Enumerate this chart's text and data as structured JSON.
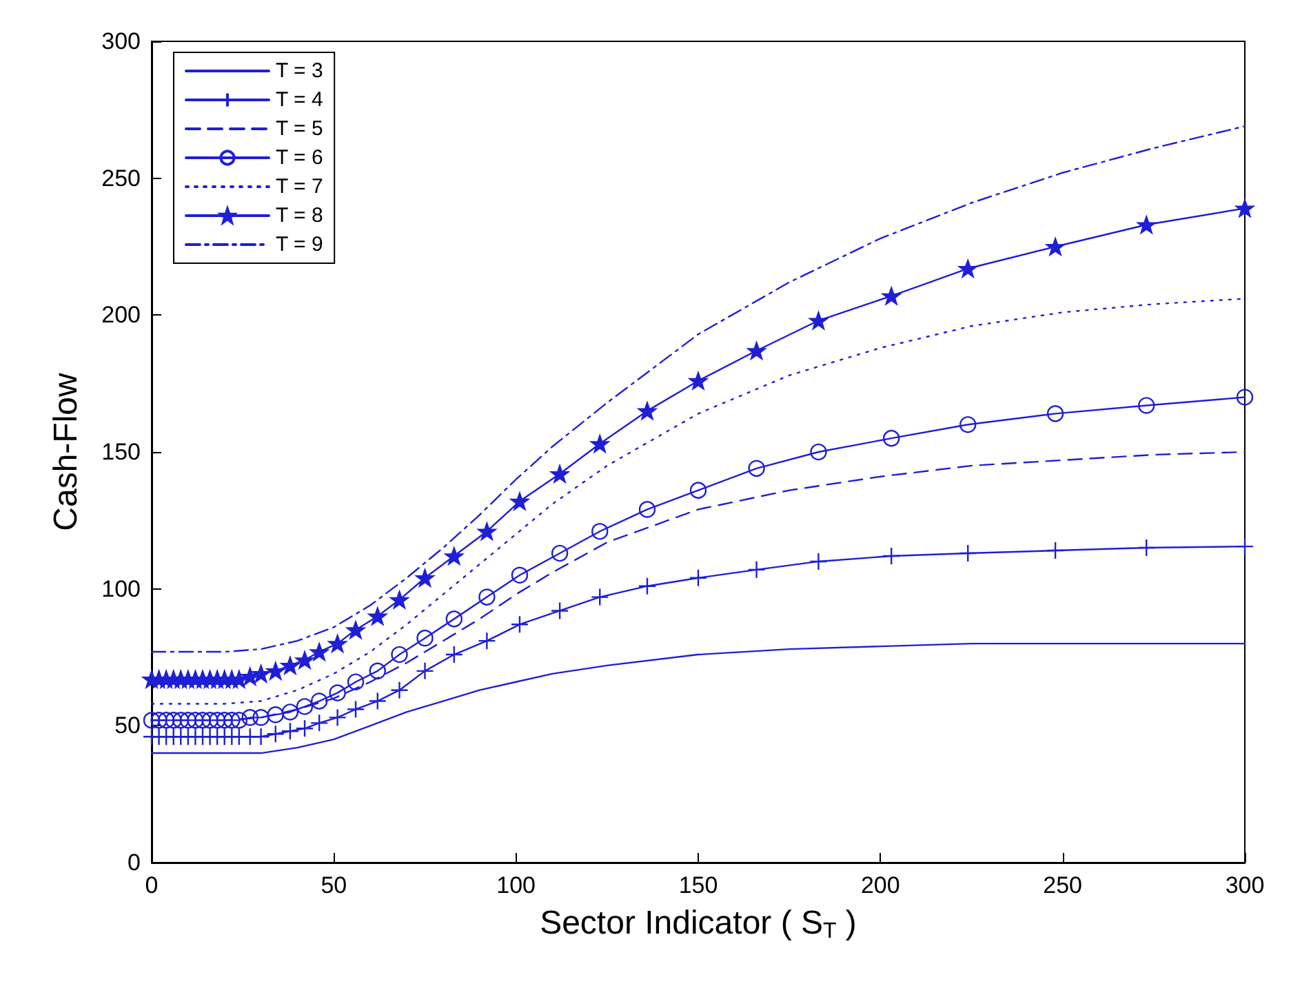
{
  "chart_data": {
    "type": "line",
    "xlabel": "Sector Indicator ( S$_{T}$ )",
    "ylabel": "Cash-Flow",
    "xlim": [
      0,
      300
    ],
    "xticks": [
      0,
      50,
      100,
      150,
      200,
      250,
      300
    ],
    "ylim": [
      0,
      300
    ],
    "yticks": [
      0,
      50,
      100,
      150,
      200,
      250,
      300
    ],
    "grid": false,
    "legend": "top left",
    "series": [
      {
        "name": "T = 3",
        "color": "#1f1fd6",
        "line_style": "solid",
        "marker": "none",
        "x": [
          0,
          10,
          20,
          30,
          40,
          50,
          60,
          70,
          80,
          90,
          100,
          110,
          125,
          150,
          175,
          200,
          225,
          250,
          275,
          300
        ],
        "values": [
          40,
          40,
          40,
          40,
          42,
          45,
          50,
          55,
          59,
          63,
          66,
          69,
          72,
          76,
          78,
          79,
          80,
          80,
          80,
          80
        ]
      },
      {
        "name": "T = 4",
        "color": "#1f1fd6",
        "line_style": "solid",
        "marker": "cross",
        "x": [
          0,
          2,
          4,
          6,
          8,
          10,
          12,
          14,
          16,
          18,
          20,
          22,
          24,
          27,
          30,
          34,
          38,
          42,
          46,
          51,
          56,
          62,
          68,
          75,
          83,
          92,
          101,
          112,
          123,
          136,
          150,
          166,
          183,
          203,
          224,
          248,
          273,
          300
        ],
        "values": [
          46,
          46,
          46,
          46,
          46,
          46,
          46,
          46,
          46,
          46,
          46,
          46,
          46,
          46,
          46,
          47,
          48,
          49,
          51,
          53,
          56,
          59,
          63,
          70,
          76,
          81,
          87,
          92,
          97,
          101,
          104,
          107,
          110,
          112,
          113,
          114,
          115,
          115.5
        ]
      },
      {
        "name": "T = 5",
        "color": "#1f1fd6",
        "line_style": "dashed",
        "marker": "none",
        "x": [
          0,
          10,
          20,
          30,
          40,
          50,
          60,
          70,
          80,
          90,
          100,
          110,
          125,
          150,
          175,
          200,
          225,
          250,
          275,
          300
        ],
        "values": [
          52,
          52,
          52,
          53,
          56,
          60,
          66,
          73,
          81,
          89,
          98,
          106,
          117,
          129,
          136,
          141,
          145,
          147,
          149,
          150
        ]
      },
      {
        "name": "T = 6",
        "color": "#1f1fd6",
        "line_style": "solid",
        "marker": "circle",
        "x": [
          0,
          2,
          4,
          6,
          8,
          10,
          12,
          14,
          16,
          18,
          20,
          22,
          24,
          27,
          30,
          34,
          38,
          42,
          46,
          51,
          56,
          62,
          68,
          75,
          83,
          92,
          101,
          112,
          123,
          136,
          150,
          166,
          183,
          203,
          224,
          248,
          273,
          300
        ],
        "values": [
          52,
          52,
          52,
          52,
          52,
          52,
          52,
          52,
          52,
          52,
          52,
          52,
          52,
          53,
          53,
          54,
          55,
          57,
          59,
          62,
          66,
          70,
          76,
          82,
          89,
          97,
          105,
          113,
          121,
          129,
          136,
          144,
          150,
          155,
          160,
          164,
          167,
          170
        ]
      },
      {
        "name": "T = 7",
        "color": "#1f1fd6",
        "line_style": "dotted",
        "marker": "none",
        "x": [
          0,
          10,
          20,
          30,
          40,
          50,
          60,
          70,
          80,
          90,
          100,
          110,
          125,
          150,
          175,
          200,
          225,
          250,
          275,
          300
        ],
        "values": [
          58,
          58,
          58,
          59,
          63,
          69,
          77,
          87,
          98,
          109,
          120,
          131,
          145,
          164,
          178,
          188,
          196,
          201,
          204,
          206
        ]
      },
      {
        "name": "T = 8",
        "color": "#1f1fd6",
        "line_style": "solid",
        "marker": "star",
        "x": [
          0,
          2,
          4,
          6,
          8,
          10,
          12,
          14,
          16,
          18,
          20,
          22,
          24,
          27,
          30,
          34,
          38,
          42,
          46,
          51,
          56,
          62,
          68,
          75,
          83,
          92,
          101,
          112,
          123,
          136,
          150,
          166,
          183,
          203,
          224,
          248,
          273,
          300
        ],
        "values": [
          67,
          67,
          67,
          67,
          67,
          67,
          67,
          67,
          67,
          67,
          67,
          67,
          67,
          68,
          69,
          70,
          72,
          74,
          77,
          80,
          85,
          90,
          96,
          104,
          112,
          121,
          132,
          142,
          153,
          165,
          176,
          187,
          198,
          207,
          217,
          225,
          233,
          239
        ]
      },
      {
        "name": "T = 9",
        "color": "#1f1fd6",
        "line_style": "dashdot",
        "marker": "none",
        "x": [
          0,
          10,
          20,
          30,
          40,
          50,
          60,
          70,
          80,
          90,
          100,
          110,
          125,
          150,
          175,
          200,
          225,
          250,
          275,
          300
        ],
        "values": [
          77,
          77,
          77,
          78,
          81,
          86,
          94,
          104,
          115,
          127,
          140,
          152,
          168,
          193,
          212,
          228,
          241,
          252,
          261,
          269
        ]
      }
    ]
  }
}
